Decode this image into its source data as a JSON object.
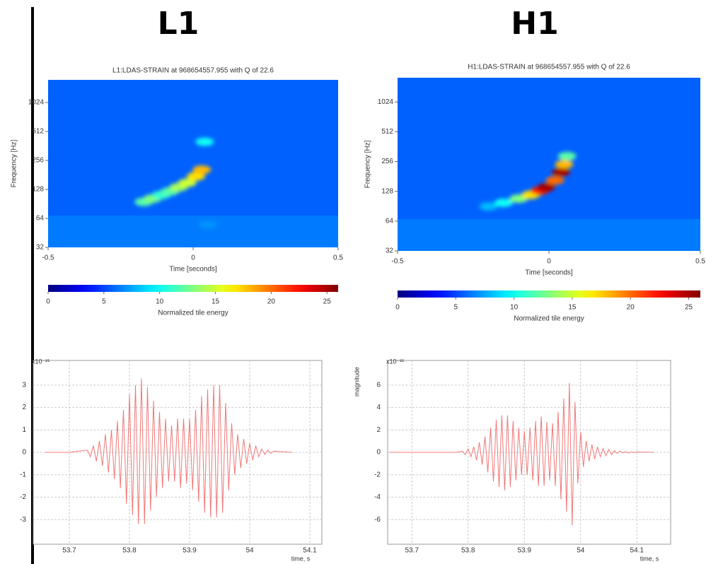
{
  "headers": [
    "L1",
    "H1"
  ],
  "chart_data": [
    {
      "type": "spectrogram",
      "title": "L1:LDAS-STRAIN at 968654557.955 with Q of 22.6",
      "x_label": "Time [seconds]",
      "y_label": "Frequency [Hz]",
      "xlim": [
        -0.5,
        0.5
      ],
      "xticks": [
        -0.5,
        0,
        0.5
      ],
      "ylim": [
        32,
        1760
      ],
      "yscale": "log",
      "yticks": [
        32,
        64,
        128,
        256,
        512,
        1024
      ],
      "x": [
        -0.17,
        -0.14,
        -0.11,
        -0.08,
        -0.05,
        -0.02,
        0.01,
        0.03,
        0.04,
        0.05
      ],
      "y": [
        95,
        103,
        112,
        122,
        135,
        150,
        175,
        205,
        400,
        55
      ],
      "values": [
        12,
        13,
        11,
        12,
        14,
        15,
        17,
        18,
        10,
        7
      ],
      "colormap": "jet",
      "clim": [
        0,
        26
      ],
      "cticks": [
        0,
        5,
        10,
        15,
        20,
        25
      ],
      "colorbar_label": "Normalized tile energy"
    },
    {
      "type": "spectrogram",
      "title": "H1:LDAS-STRAIN at 968654557.955 with Q of 22.6",
      "x_label": "Time [seconds]",
      "y_label": "Frequency [Hz]",
      "xlim": [
        -0.5,
        0.5
      ],
      "xticks": [
        -0.5,
        0,
        0.5
      ],
      "ylim": [
        32,
        1800
      ],
      "yscale": "log",
      "yticks": [
        32,
        64,
        128,
        256,
        512,
        1024
      ],
      "x": [
        -0.2,
        -0.15,
        -0.1,
        -0.06,
        -0.03,
        -0.01,
        0.02,
        0.04,
        0.05,
        0.06
      ],
      "y": [
        90,
        98,
        108,
        118,
        130,
        140,
        165,
        200,
        240,
        290
      ],
      "values": [
        8,
        10,
        13,
        17,
        22,
        25,
        20,
        25,
        18,
        12
      ],
      "colormap": "jet",
      "clim": [
        0,
        26
      ],
      "cticks": [
        0,
        5,
        10,
        15,
        20,
        25
      ],
      "colorbar_label": "Normalized tile energy"
    },
    {
      "type": "line",
      "x_label": "time, s",
      "y_multiplier": "x10⁻²¹",
      "color": "#f07878",
      "grid": true,
      "xlim": [
        53.64,
        54.12
      ],
      "xticks": [
        53.7,
        53.8,
        53.9,
        54,
        54.1
      ],
      "ylim": [
        -4.1,
        4.1
      ],
      "yticks": [
        -3,
        -2,
        -1,
        0,
        1,
        2,
        3
      ],
      "x": [
        53.66,
        53.7,
        53.73,
        53.735,
        53.74,
        53.745,
        53.75,
        53.755,
        53.76,
        53.765,
        53.77,
        53.775,
        53.78,
        53.785,
        53.79,
        53.795,
        53.8,
        53.805,
        53.81,
        53.815,
        53.82,
        53.825,
        53.83,
        53.835,
        53.84,
        53.845,
        53.85,
        53.855,
        53.86,
        53.865,
        53.87,
        53.875,
        53.88,
        53.885,
        53.89,
        53.895,
        53.9,
        53.905,
        53.91,
        53.915,
        53.92,
        53.925,
        53.93,
        53.935,
        53.94,
        53.945,
        53.95,
        53.955,
        53.96,
        53.965,
        53.97,
        53.975,
        53.98,
        53.985,
        53.99,
        53.995,
        54,
        54.005,
        54.01,
        54.015,
        54.02,
        54.025,
        54.03,
        54.035,
        54.04,
        54.07
      ],
      "values": [
        0,
        0,
        0.1,
        -0.2,
        0.3,
        -0.4,
        0.5,
        -0.6,
        0.8,
        -0.9,
        1,
        -1.2,
        1.4,
        -1.6,
        1.9,
        -2.3,
        2.6,
        -2.8,
        3,
        -3.2,
        3.3,
        -3.2,
        2.9,
        -2.6,
        2.3,
        -2,
        1.8,
        -1.6,
        1.5,
        -1.3,
        1.2,
        -1.3,
        1.5,
        -1.6,
        1.5,
        -1.4,
        1.5,
        -1.7,
        1.9,
        -2.2,
        2.5,
        -2.7,
        2.8,
        -2.9,
        3,
        -2.9,
        3,
        -2.7,
        2.2,
        -1.7,
        1.3,
        -1,
        0.8,
        -0.7,
        0.6,
        -0.5,
        0.4,
        -0.35,
        0.3,
        -0.2,
        0.15,
        -0.1,
        0.1,
        -0.05,
        0.05,
        0
      ]
    },
    {
      "type": "line",
      "x_label": "time, s",
      "y_label": "magnitude",
      "y_multiplier": "x10⁻²¹",
      "color": "#f07878",
      "grid": true,
      "xlim": [
        53.657,
        54.16
      ],
      "xticks": [
        53.7,
        53.8,
        53.9,
        54,
        54.1
      ],
      "ylim": [
        -8.2,
        8.2
      ],
      "yticks": [
        -6,
        -4,
        -2,
        0,
        2,
        4,
        6
      ],
      "x": [
        53.66,
        53.72,
        53.78,
        53.79,
        53.795,
        53.8,
        53.805,
        53.81,
        53.815,
        53.82,
        53.825,
        53.83,
        53.835,
        53.84,
        53.845,
        53.85,
        53.855,
        53.86,
        53.865,
        53.87,
        53.875,
        53.88,
        53.885,
        53.89,
        53.895,
        53.9,
        53.905,
        53.91,
        53.915,
        53.92,
        53.925,
        53.93,
        53.935,
        53.94,
        53.945,
        53.95,
        53.955,
        53.96,
        53.965,
        53.97,
        53.975,
        53.98,
        53.985,
        53.99,
        53.995,
        54,
        54.005,
        54.01,
        54.015,
        54.02,
        54.025,
        54.03,
        54.035,
        54.04,
        54.045,
        54.05,
        54.055,
        54.06,
        54.065,
        54.07,
        54.075,
        54.08,
        54.085,
        54.09,
        54.095,
        54.1,
        54.13
      ],
      "values": [
        0,
        0,
        0,
        0.1,
        -0.2,
        0.3,
        -0.4,
        0.5,
        -0.7,
        0.9,
        -1.1,
        1.4,
        -1.8,
        2.2,
        -2.6,
        2.9,
        -3.1,
        3.3,
        -3.4,
        3.3,
        -3.1,
        2.8,
        -2.5,
        2.2,
        -2,
        1.9,
        -2,
        2.2,
        -2.5,
        2.8,
        -3,
        3.2,
        -3,
        2.7,
        -2.5,
        2.6,
        -3,
        3.6,
        -4.2,
        4.8,
        -5.3,
        6.2,
        -6.5,
        4.5,
        -2.8,
        1.8,
        -1.3,
        1,
        -0.8,
        0.7,
        -0.6,
        0.5,
        -0.4,
        0.35,
        -0.3,
        0.25,
        -0.2,
        0.15,
        -0.1,
        0.1,
        -0.05,
        0.05,
        -0.05,
        0.03,
        -0.03,
        0.03,
        0
      ]
    }
  ]
}
